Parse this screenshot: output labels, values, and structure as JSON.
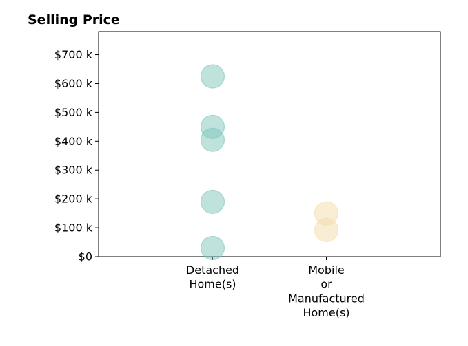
{
  "chart_data": {
    "type": "scatter",
    "title": "Selling Price",
    "xlabel": "",
    "ylabel": "",
    "categories": [
      [
        "Detached",
        "Home(s)"
      ],
      [
        "Mobile",
        "or",
        "Manufactured",
        "Home(s)"
      ]
    ],
    "y_ticks": [
      {
        "value": 0,
        "label": "$0"
      },
      {
        "value": 100000,
        "label": "$100 k"
      },
      {
        "value": 200000,
        "label": "$200 k"
      },
      {
        "value": 300000,
        "label": "$300 k"
      },
      {
        "value": 400000,
        "label": "$400 k"
      },
      {
        "value": 500000,
        "label": "$500 k"
      },
      {
        "value": 600000,
        "label": "$600 k"
      },
      {
        "value": 700000,
        "label": "$700 k"
      }
    ],
    "ylim": [
      0,
      780000
    ],
    "grid": false,
    "legend": "none",
    "series": [
      {
        "category_index": 0,
        "color": "#7fc6bc",
        "values": [
          625000,
          450000,
          405000,
          190000,
          30000
        ]
      },
      {
        "category_index": 1,
        "color": "#f3dca8",
        "values": [
          150000,
          92000
        ]
      }
    ]
  }
}
